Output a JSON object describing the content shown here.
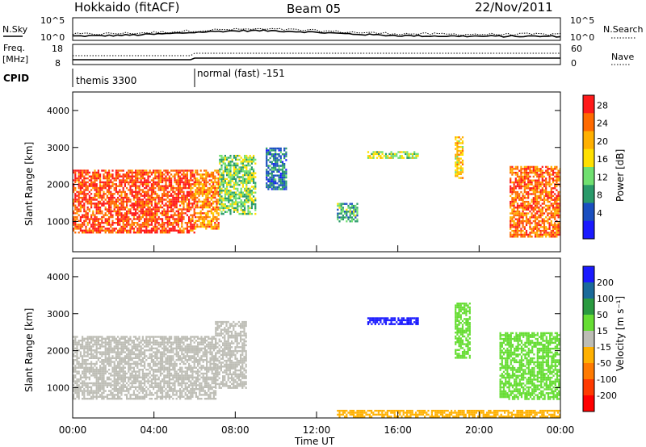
{
  "header": {
    "title": "Hokkaido (fitACF)",
    "beam": "Beam 05",
    "date": "22/Nov/2011"
  },
  "status_panels": {
    "nsky": {
      "label": "N.Sky",
      "ticks": [
        "10^5",
        "10^0"
      ]
    },
    "nsearch": {
      "label": "N.Search",
      "ticks": [
        "10^5",
        "10^0"
      ]
    },
    "freq": {
      "label_line1": "Freq.",
      "label_line2": "[MHz]",
      "ticks": [
        "18",
        "8"
      ]
    },
    "nave": {
      "label": "Nave",
      "ticks": [
        "60",
        "0"
      ]
    },
    "cpid": {
      "label": "CPID",
      "modes": [
        "themis 3300",
        "normal (fast) -151"
      ]
    }
  },
  "axes": {
    "ylabel": "Slant Range [km]",
    "yticks": [
      "4000",
      "3000",
      "2000",
      "1000"
    ],
    "xlabel": "Time UT",
    "xticks": [
      "00:00",
      "04:00",
      "08:00",
      "12:00",
      "16:00",
      "20:00",
      "00:00"
    ]
  },
  "power_scale": {
    "label": "Power [dB]",
    "ticks": [
      "28",
      "24",
      "20",
      "16",
      "12",
      "8",
      "4"
    ],
    "colors": [
      "#ff1a1a",
      "#ff6a00",
      "#ffb000",
      "#ffe000",
      "#70e070",
      "#2a9a6a",
      "#1a4fc0",
      "#1a1aff"
    ]
  },
  "velocity_scale": {
    "label": "Velocity [m s⁻¹]",
    "ticks": [
      "200",
      "100",
      "50",
      "15",
      "-15",
      "-50",
      "-100",
      "-200"
    ],
    "colors": [
      "#1a1aff",
      "#1a6a9a",
      "#2a9a40",
      "#66dd33",
      "#bdbdb5",
      "#ffb000",
      "#ff7a00",
      "#ff3a00",
      "#ff0000"
    ]
  },
  "chart_data": [
    {
      "type": "heatmap",
      "title": "Power [dB]",
      "xlabel": "Time UT",
      "ylabel": "Slant Range [km]",
      "xlim": [
        "00:00",
        "24:00"
      ],
      "ylim": [
        180,
        4500
      ],
      "colorbar": {
        "label": "Power [dB]",
        "ticks": [
          4,
          8,
          12,
          16,
          20,
          24,
          28
        ]
      },
      "regions": [
        {
          "t": [
            0.0,
            6.0
          ],
          "range": [
            700,
            2400
          ],
          "power": 26
        },
        {
          "t": [
            6.0,
            7.2
          ],
          "range": [
            800,
            2400
          ],
          "power": 22
        },
        {
          "t": [
            7.2,
            9.0
          ],
          "range": [
            1200,
            2800
          ],
          "power": 12
        },
        {
          "t": [
            9.5,
            10.5
          ],
          "range": [
            1900,
            3000
          ],
          "power": 6
        },
        {
          "t": [
            13.0,
            14.0
          ],
          "range": [
            1000,
            1500
          ],
          "power": 10
        },
        {
          "t": [
            14.5,
            17.0
          ],
          "range": [
            2700,
            2900
          ],
          "power": 14
        },
        {
          "t": [
            18.8,
            19.2
          ],
          "range": [
            2200,
            3300
          ],
          "power": 18
        },
        {
          "t": [
            21.5,
            24.0
          ],
          "range": [
            600,
            2500
          ],
          "power": 24
        }
      ]
    },
    {
      "type": "heatmap",
      "title": "Velocity",
      "xlabel": "Time UT",
      "ylabel": "Slant Range [km]",
      "xlim": [
        "00:00",
        "24:00"
      ],
      "ylim": [
        180,
        4500
      ],
      "colorbar": {
        "label": "Velocity [m s-1]",
        "ticks": [
          -200,
          -100,
          -50,
          -15,
          15,
          50,
          100,
          200
        ]
      },
      "regions": [
        {
          "t": [
            0.0,
            7.0
          ],
          "range": [
            700,
            2400
          ],
          "velocity": 0
        },
        {
          "t": [
            7.0,
            8.5
          ],
          "range": [
            1000,
            2800
          ],
          "velocity": 0
        },
        {
          "t": [
            14.5,
            17.0
          ],
          "range": [
            2700,
            2900
          ],
          "velocity": 200
        },
        {
          "t": [
            18.8,
            19.5
          ],
          "range": [
            1800,
            3300
          ],
          "velocity": 30
        },
        {
          "t": [
            21.0,
            24.0
          ],
          "range": [
            700,
            2500
          ],
          "velocity": 30
        },
        {
          "t": [
            13.0,
            24.0
          ],
          "range": [
            200,
            400
          ],
          "velocity": -30
        }
      ]
    }
  ]
}
